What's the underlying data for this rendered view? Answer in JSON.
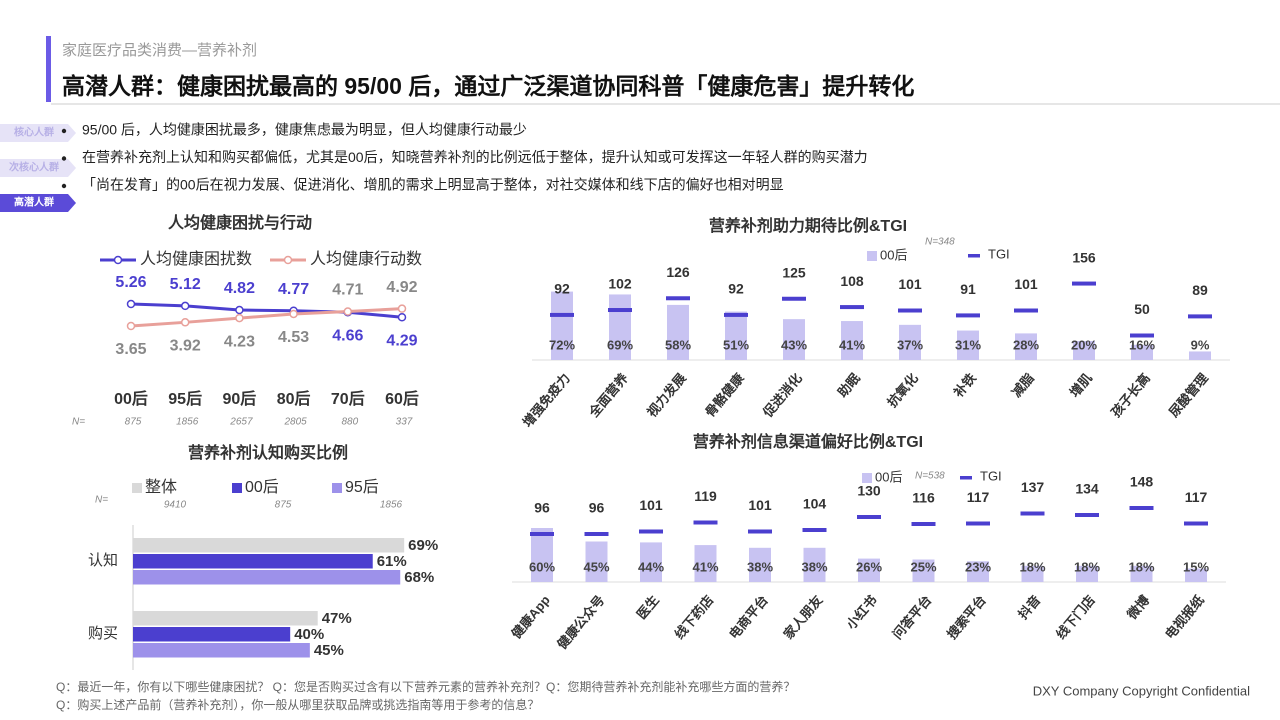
{
  "header": {
    "category": "家庭医疗品类消费—营养补剂",
    "title": "高潜人群：健康困扰最高的 95/00 后，通过广泛渠道协同科普「健康危害」提升转化"
  },
  "side_tabs": [
    "核心人群",
    "次核心人群",
    "高潜人群"
  ],
  "bullets": [
    "95/00 后，人均健康困扰最多，健康焦虑最为明显，但人均健康行动最少",
    "在营养补充剂上认知和购买都偏低，尤其是00后，知晓营养补剂的比例远低于整体，提升认知或可发挥这一年轻人群的购买潜力",
    "「尚在发育」的00后在视力发展、促进消化、增肌的需求上明显高于整体，对社交媒体和线下店的偏好也相对明显"
  ],
  "chart_data": [
    {
      "type": "line",
      "title": "人均健康困扰与行动",
      "categories": [
        "00后",
        "95后",
        "90后",
        "80后",
        "70后",
        "60后"
      ],
      "series": [
        {
          "name": "人均健康困扰数",
          "color": "#4b3fcf",
          "values": [
            5.26,
            5.12,
            4.82,
            4.77,
            4.66,
            4.29
          ]
        },
        {
          "name": "人均健康行动数",
          "color": "#e8a09a",
          "values": [
            3.65,
            3.92,
            4.23,
            4.53,
            4.71,
            4.92
          ]
        }
      ],
      "n_label": "N=",
      "n_values": [
        875,
        1856,
        2657,
        2805,
        880,
        337
      ]
    },
    {
      "type": "bar",
      "title": "营养补剂助力期待比例&TGI",
      "note": "N=348",
      "categories": [
        "增强免疫力",
        "全面营养",
        "视力发展",
        "骨骼健康",
        "促进消化",
        "助眠",
        "抗氧化",
        "补铁",
        "减脂",
        "增肌",
        "孩子长高",
        "尿酸管理"
      ],
      "series": [
        {
          "name": "00后",
          "color": "#c8c3f2",
          "values": [
            72,
            69,
            58,
            51,
            43,
            41,
            37,
            31,
            28,
            20,
            16,
            9
          ],
          "value_labels": [
            "72%",
            "69%",
            "58%",
            "51%",
            "43%",
            "41%",
            "37%",
            "31%",
            "28%",
            "20%",
            "16%",
            "9%"
          ]
        },
        {
          "name": "TGI",
          "color": "#4b3fcf",
          "mark": "dash",
          "values": [
            92,
            102,
            126,
            92,
            125,
            108,
            101,
            91,
            101,
            156,
            50,
            89
          ]
        }
      ]
    },
    {
      "type": "bar",
      "title": "营养补剂信息渠道偏好比例&TGI",
      "note": "N=538",
      "categories": [
        "健康App",
        "健康公众号",
        "医生",
        "线下药店",
        "电商平台",
        "家人朋友",
        "小红书",
        "问答平台",
        "搜索平台",
        "抖音",
        "线下门店",
        "微博",
        "电视报纸"
      ],
      "series": [
        {
          "name": "00后",
          "color": "#c8c3f2",
          "values": [
            60,
            45,
            44,
            41,
            38,
            38,
            26,
            25,
            23,
            18,
            18,
            18,
            15
          ],
          "value_labels": [
            "60%",
            "45%",
            "44%",
            "41%",
            "38%",
            "38%",
            "26%",
            "25%",
            "23%",
            "18%",
            "18%",
            "18%",
            "15%"
          ]
        },
        {
          "name": "TGI",
          "color": "#4b3fcf",
          "mark": "dash",
          "values": [
            96,
            96,
            101,
            119,
            101,
            104,
            130,
            116,
            117,
            137,
            134,
            148,
            117
          ]
        }
      ]
    },
    {
      "type": "hbar",
      "title": "营养补剂认知购买比例",
      "categories": [
        "认知",
        "购买"
      ],
      "series": [
        {
          "name": "整体",
          "color": "#d9d9d9",
          "values": [
            69,
            47
          ],
          "value_labels": [
            "69%",
            "47%"
          ]
        },
        {
          "name": "00后",
          "color": "#4b3fcf",
          "values": [
            61,
            40
          ],
          "value_labels": [
            "61%",
            "40%"
          ]
        },
        {
          "name": "95后",
          "color": "#9d91ea",
          "values": [
            68,
            45
          ],
          "value_labels": [
            "68%",
            "45%"
          ]
        }
      ],
      "n_label": "N=",
      "n_values": [
        9410,
        875,
        1856
      ]
    }
  ],
  "footer": {
    "questions": [
      "Q：最近一年，你有以下哪些健康困扰？ Q：您是否购买过含有以下营养元素的营养补充剂？Q：您期待营养补充剂能补充哪些方面的营养？",
      "Q：购买上述产品前（营养补充剂），你一般从哪里获取品牌或挑选指南等用于参考的信息？"
    ],
    "copyright": "DXY Company Copyright Confidential"
  }
}
